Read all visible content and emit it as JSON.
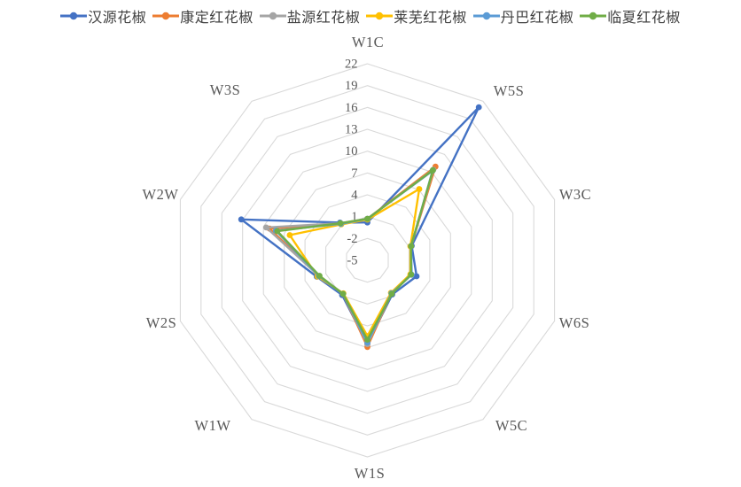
{
  "chart_data": {
    "type": "line",
    "subtype": "radar",
    "title": "",
    "categories": [
      "W1C",
      "W5S",
      "W3C",
      "W6S",
      "W5C",
      "W1S",
      "W1W",
      "W2S",
      "W2W",
      "W3S"
    ],
    "series": [
      {
        "name": "汉源花椒",
        "color": "#4472C4",
        "values": [
          0.2,
          21.0,
          1.4,
          2.1,
          0.8,
          6.5,
          0.9,
          2.3,
          13.2,
          1.4
        ]
      },
      {
        "name": "康定红花椒",
        "color": "#ED7D31",
        "values": [
          0.7,
          10.9,
          1.3,
          1.3,
          0.6,
          6.9,
          0.7,
          2.0,
          9.1,
          1.2
        ]
      },
      {
        "name": "盐源红花椒",
        "color": "#A5A5A5",
        "values": [
          0.7,
          10.4,
          1.3,
          1.3,
          0.6,
          6.5,
          0.7,
          2.0,
          9.6,
          1.3
        ]
      },
      {
        "name": "莱芜红花椒",
        "color": "#FFC000",
        "values": [
          0.6,
          7.1,
          1.2,
          1.2,
          0.5,
          5.4,
          0.6,
          2.2,
          6.2,
          1.1
        ]
      },
      {
        "name": "丹巴红花椒",
        "color": "#5B9BD5",
        "values": [
          0.7,
          10.2,
          1.3,
          1.4,
          0.6,
          6.3,
          0.7,
          2.0,
          8.2,
          1.2
        ]
      },
      {
        "name": "临夏红花椒",
        "color": "#70AD47",
        "values": [
          0.7,
          10.3,
          1.3,
          1.3,
          0.7,
          5.9,
          0.7,
          1.9,
          8.0,
          1.3
        ]
      }
    ],
    "radial_axis": {
      "min": -5,
      "max": 22,
      "step": 3,
      "tick_labels": [
        "22",
        "19",
        "16",
        "13",
        "10",
        "7",
        "4",
        "1",
        "-2",
        "-5"
      ]
    },
    "legend_position": "top",
    "grid": true,
    "gridline_shape": "polygon",
    "colors": {
      "gridline": "#D9D9D9",
      "tick_label": "#595959",
      "category_label": "#595959",
      "legend_text": "#404040",
      "background": "#FFFFFF"
    }
  }
}
